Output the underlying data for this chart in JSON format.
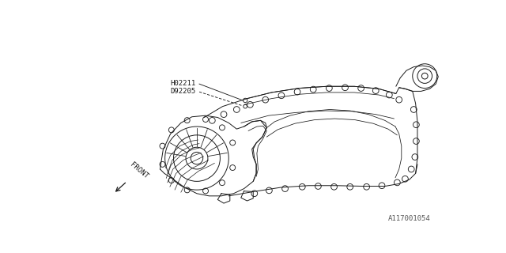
{
  "bg_color": "#ffffff",
  "lc": "#1a1a1a",
  "label1": "H02211",
  "label2": "D92205",
  "front_label": "FRONT",
  "catalog": "A117001054",
  "lw": 0.7
}
